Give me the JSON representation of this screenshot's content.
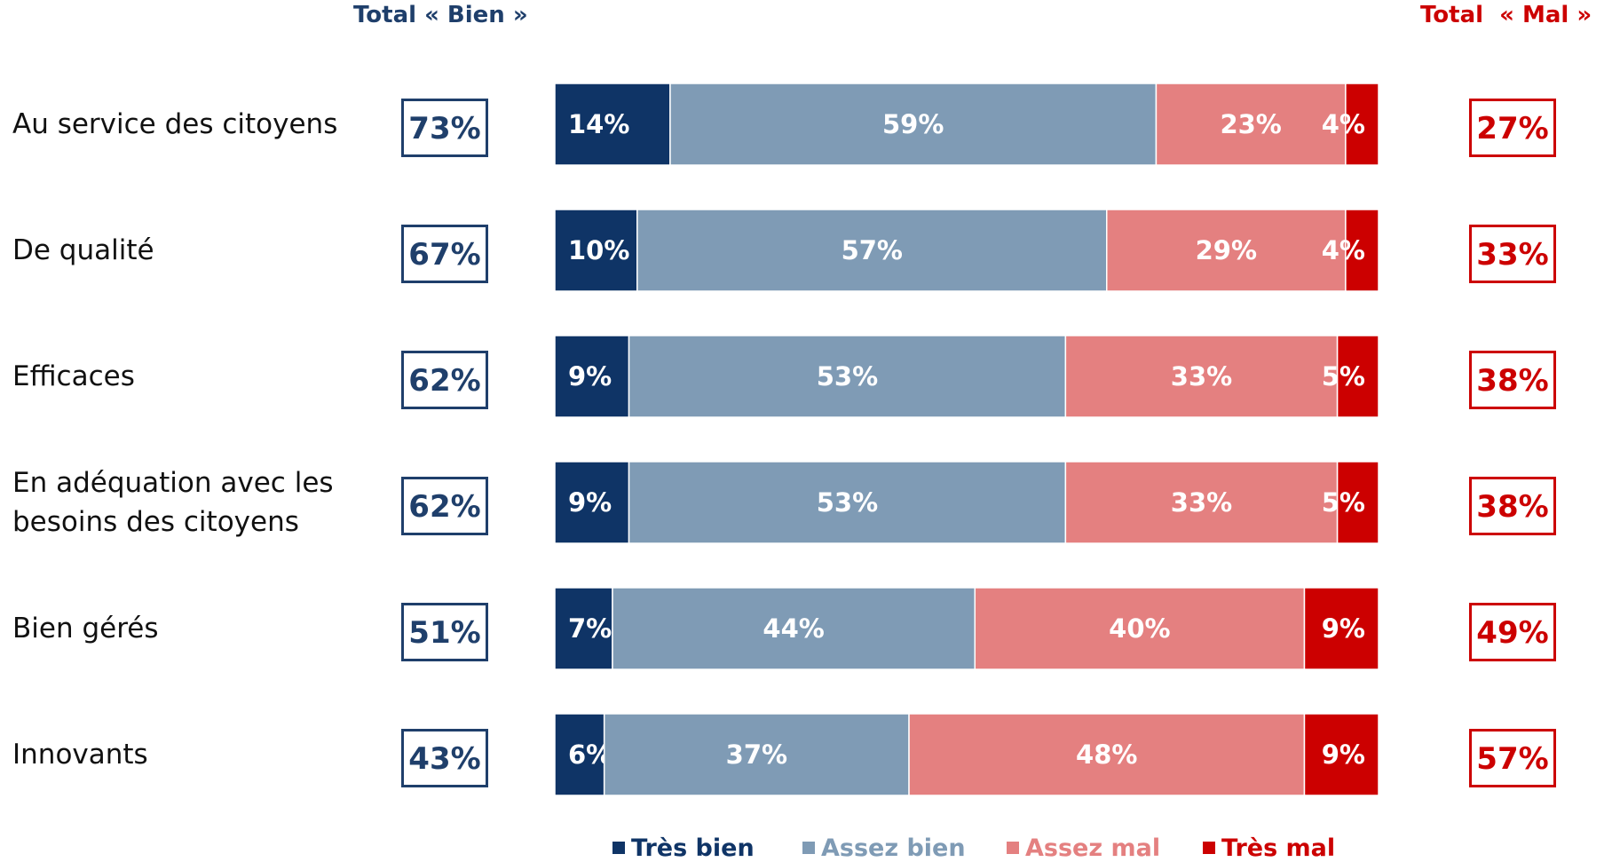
{
  "header": {
    "bien_title": "Total « Bien »",
    "mal_title": "Total  « Mal »"
  },
  "chart_data": {
    "type": "bar",
    "orientation": "horizontal",
    "stacked": true,
    "percent_stacked": true,
    "categories": [
      "Au service des citoyens",
      "De qualité",
      "Efficaces",
      "En adéquation avec les\nbesoins des citoyens",
      "Bien gérés",
      "Innovants"
    ],
    "series": [
      {
        "name": "Très bien",
        "color": "#0f3466",
        "values": [
          14,
          10,
          9,
          9,
          7,
          6
        ]
      },
      {
        "name": "Assez bien",
        "color": "#7f9bb5",
        "values": [
          59,
          57,
          53,
          53,
          44,
          37
        ]
      },
      {
        "name": "Assez mal",
        "color": "#e48080",
        "values": [
          23,
          29,
          33,
          33,
          40,
          48
        ]
      },
      {
        "name": "Très mal",
        "color": "#cc0000",
        "values": [
          4,
          4,
          5,
          5,
          9,
          9
        ]
      }
    ],
    "total_bien": [
      73,
      67,
      62,
      62,
      51,
      43
    ],
    "total_mal": [
      27,
      33,
      38,
      38,
      49,
      57
    ],
    "value_format": "{v}%",
    "xlim": [
      0,
      100
    ],
    "legend_position": "bottom",
    "grid": false
  },
  "legend": [
    {
      "label": "Très bien",
      "color": "#0f3466"
    },
    {
      "label": "Assez bien",
      "color": "#7f9bb5"
    },
    {
      "label": "Assez mal",
      "color": "#e48080"
    },
    {
      "label": "Très mal",
      "color": "#cc0000"
    }
  ]
}
